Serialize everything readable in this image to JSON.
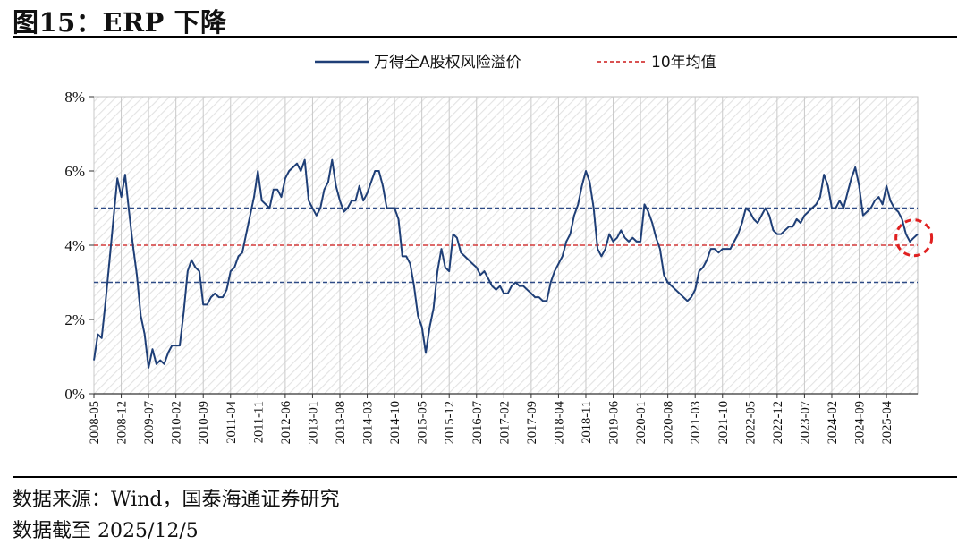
{
  "figure": {
    "title": "图15：ERP 下降",
    "source": "数据来源：Wind，国泰海通证券研究",
    "date_note": "数据截至 2025/12/5"
  },
  "colors": {
    "series": "#1f3f77",
    "mean": "#d43a3a",
    "bands": "#2e4b86",
    "highlight": "#e02020",
    "hatch": "#d8d8d8"
  },
  "chart_data": {
    "type": "line",
    "legend_position": "top",
    "hatched_background": true,
    "y_ticks": [
      "0%",
      "2%",
      "4%",
      "6%",
      "8%"
    ],
    "ylim": [
      0,
      8
    ],
    "x_ticks": [
      "2008-05",
      "2008-12",
      "2009-07",
      "2010-02",
      "2010-09",
      "2011-04",
      "2011-11",
      "2012-06",
      "2013-01",
      "2013-08",
      "2014-03",
      "2014-10",
      "2015-05",
      "2015-12",
      "2016-07",
      "2017-02",
      "2017-09",
      "2018-04",
      "2018-11",
      "2019-06",
      "2020-01",
      "2020-08",
      "2021-03",
      "2021-10",
      "2022-05",
      "2022-12",
      "2023-07",
      "2024-02",
      "2024-09",
      "2025-04"
    ],
    "x_range": [
      "2008-05",
      "2025-12"
    ],
    "series": [
      {
        "name": "万得全A股权风险溢价",
        "points": [
          [
            "2008-05",
            0.9
          ],
          [
            "2008-06",
            1.6
          ],
          [
            "2008-07",
            1.5
          ],
          [
            "2008-08",
            2.5
          ],
          [
            "2008-09",
            3.6
          ],
          [
            "2008-10",
            4.7
          ],
          [
            "2008-11",
            5.8
          ],
          [
            "2008-12",
            5.3
          ],
          [
            "2009-01",
            5.9
          ],
          [
            "2009-02",
            4.9
          ],
          [
            "2009-03",
            4.0
          ],
          [
            "2009-04",
            3.2
          ],
          [
            "2009-05",
            2.1
          ],
          [
            "2009-06",
            1.6
          ],
          [
            "2009-07",
            0.7
          ],
          [
            "2009-08",
            1.2
          ],
          [
            "2009-09",
            0.8
          ],
          [
            "2009-10",
            0.9
          ],
          [
            "2009-11",
            0.8
          ],
          [
            "2009-12",
            1.1
          ],
          [
            "2010-01",
            1.3
          ],
          [
            "2010-02",
            1.3
          ],
          [
            "2010-03",
            1.3
          ],
          [
            "2010-04",
            2.2
          ],
          [
            "2010-05",
            3.3
          ],
          [
            "2010-06",
            3.6
          ],
          [
            "2010-07",
            3.4
          ],
          [
            "2010-08",
            3.3
          ],
          [
            "2010-09",
            2.4
          ],
          [
            "2010-10",
            2.4
          ],
          [
            "2010-11",
            2.6
          ],
          [
            "2010-12",
            2.7
          ],
          [
            "2011-01",
            2.6
          ],
          [
            "2011-02",
            2.6
          ],
          [
            "2011-03",
            2.8
          ],
          [
            "2011-04",
            3.3
          ],
          [
            "2011-05",
            3.4
          ],
          [
            "2011-06",
            3.7
          ],
          [
            "2011-07",
            3.8
          ],
          [
            "2011-08",
            4.3
          ],
          [
            "2011-09",
            4.8
          ],
          [
            "2011-10",
            5.3
          ],
          [
            "2011-11",
            6.0
          ],
          [
            "2011-12",
            5.2
          ],
          [
            "2012-01",
            5.1
          ],
          [
            "2012-02",
            5.0
          ],
          [
            "2012-03",
            5.5
          ],
          [
            "2012-04",
            5.5
          ],
          [
            "2012-05",
            5.3
          ],
          [
            "2012-06",
            5.8
          ],
          [
            "2012-07",
            6.0
          ],
          [
            "2012-08",
            6.1
          ],
          [
            "2012-09",
            6.2
          ],
          [
            "2012-10",
            6.0
          ],
          [
            "2012-11",
            6.3
          ],
          [
            "2012-12",
            5.2
          ],
          [
            "2013-01",
            5.0
          ],
          [
            "2013-02",
            4.8
          ],
          [
            "2013-03",
            5.0
          ],
          [
            "2013-04",
            5.5
          ],
          [
            "2013-05",
            5.7
          ],
          [
            "2013-06",
            6.3
          ],
          [
            "2013-07",
            5.6
          ],
          [
            "2013-08",
            5.2
          ],
          [
            "2013-09",
            4.9
          ],
          [
            "2013-10",
            5.0
          ],
          [
            "2013-11",
            5.2
          ],
          [
            "2013-12",
            5.2
          ],
          [
            "2014-01",
            5.6
          ],
          [
            "2014-02",
            5.2
          ],
          [
            "2014-03",
            5.4
          ],
          [
            "2014-04",
            5.7
          ],
          [
            "2014-05",
            6.0
          ],
          [
            "2014-06",
            6.0
          ],
          [
            "2014-07",
            5.6
          ],
          [
            "2014-08",
            5.0
          ],
          [
            "2014-09",
            5.0
          ],
          [
            "2014-10",
            5.0
          ],
          [
            "2014-11",
            4.7
          ],
          [
            "2014-12",
            3.7
          ],
          [
            "2015-01",
            3.7
          ],
          [
            "2015-02",
            3.5
          ],
          [
            "2015-03",
            2.9
          ],
          [
            "2015-04",
            2.1
          ],
          [
            "2015-05",
            1.8
          ],
          [
            "2015-06",
            1.1
          ],
          [
            "2015-07",
            1.8
          ],
          [
            "2015-08",
            2.3
          ],
          [
            "2015-09",
            3.3
          ],
          [
            "2015-10",
            3.9
          ],
          [
            "2015-11",
            3.4
          ],
          [
            "2015-12",
            3.3
          ],
          [
            "2016-01",
            4.3
          ],
          [
            "2016-02",
            4.2
          ],
          [
            "2016-03",
            3.8
          ],
          [
            "2016-04",
            3.7
          ],
          [
            "2016-05",
            3.6
          ],
          [
            "2016-06",
            3.5
          ],
          [
            "2016-07",
            3.4
          ],
          [
            "2016-08",
            3.2
          ],
          [
            "2016-09",
            3.3
          ],
          [
            "2016-10",
            3.1
          ],
          [
            "2016-11",
            2.9
          ],
          [
            "2016-12",
            2.8
          ],
          [
            "2017-01",
            2.9
          ],
          [
            "2017-02",
            2.7
          ],
          [
            "2017-03",
            2.7
          ],
          [
            "2017-04",
            2.9
          ],
          [
            "2017-05",
            3.0
          ],
          [
            "2017-06",
            2.9
          ],
          [
            "2017-07",
            2.9
          ],
          [
            "2017-08",
            2.8
          ],
          [
            "2017-09",
            2.7
          ],
          [
            "2017-10",
            2.6
          ],
          [
            "2017-11",
            2.6
          ],
          [
            "2017-12",
            2.5
          ],
          [
            "2018-01",
            2.5
          ],
          [
            "2018-02",
            3.0
          ],
          [
            "2018-03",
            3.3
          ],
          [
            "2018-04",
            3.5
          ],
          [
            "2018-05",
            3.7
          ],
          [
            "2018-06",
            4.1
          ],
          [
            "2018-07",
            4.3
          ],
          [
            "2018-08",
            4.8
          ],
          [
            "2018-09",
            5.1
          ],
          [
            "2018-10",
            5.6
          ],
          [
            "2018-11",
            6.0
          ],
          [
            "2018-12",
            5.7
          ],
          [
            "2019-01",
            5.0
          ],
          [
            "2019-02",
            3.9
          ],
          [
            "2019-03",
            3.7
          ],
          [
            "2019-04",
            3.9
          ],
          [
            "2019-05",
            4.3
          ],
          [
            "2019-06",
            4.1
          ],
          [
            "2019-07",
            4.2
          ],
          [
            "2019-08",
            4.4
          ],
          [
            "2019-09",
            4.2
          ],
          [
            "2019-10",
            4.1
          ],
          [
            "2019-11",
            4.2
          ],
          [
            "2019-12",
            4.1
          ],
          [
            "2020-01",
            4.1
          ],
          [
            "2020-02",
            5.1
          ],
          [
            "2020-03",
            4.9
          ],
          [
            "2020-04",
            4.6
          ],
          [
            "2020-05",
            4.2
          ],
          [
            "2020-06",
            3.9
          ],
          [
            "2020-07",
            3.2
          ],
          [
            "2020-08",
            3.0
          ],
          [
            "2020-09",
            2.9
          ],
          [
            "2020-10",
            2.8
          ],
          [
            "2020-11",
            2.7
          ],
          [
            "2020-12",
            2.6
          ],
          [
            "2021-01",
            2.5
          ],
          [
            "2021-02",
            2.6
          ],
          [
            "2021-03",
            2.8
          ],
          [
            "2021-04",
            3.3
          ],
          [
            "2021-05",
            3.4
          ],
          [
            "2021-06",
            3.6
          ],
          [
            "2021-07",
            3.9
          ],
          [
            "2021-08",
            3.9
          ],
          [
            "2021-09",
            3.8
          ],
          [
            "2021-10",
            3.9
          ],
          [
            "2021-11",
            3.9
          ],
          [
            "2021-12",
            3.9
          ],
          [
            "2022-01",
            4.1
          ],
          [
            "2022-02",
            4.3
          ],
          [
            "2022-03",
            4.6
          ],
          [
            "2022-04",
            5.0
          ],
          [
            "2022-05",
            4.9
          ],
          [
            "2022-06",
            4.7
          ],
          [
            "2022-07",
            4.6
          ],
          [
            "2022-08",
            4.8
          ],
          [
            "2022-09",
            5.0
          ],
          [
            "2022-10",
            4.8
          ],
          [
            "2022-11",
            4.4
          ],
          [
            "2022-12",
            4.3
          ],
          [
            "2023-01",
            4.3
          ],
          [
            "2023-02",
            4.4
          ],
          [
            "2023-03",
            4.5
          ],
          [
            "2023-04",
            4.5
          ],
          [
            "2023-05",
            4.7
          ],
          [
            "2023-06",
            4.6
          ],
          [
            "2023-07",
            4.8
          ],
          [
            "2023-08",
            4.9
          ],
          [
            "2023-09",
            5.0
          ],
          [
            "2023-10",
            5.1
          ],
          [
            "2023-11",
            5.3
          ],
          [
            "2023-12",
            5.9
          ],
          [
            "2024-01",
            5.6
          ],
          [
            "2024-02",
            5.0
          ],
          [
            "2024-03",
            5.0
          ],
          [
            "2024-04",
            5.2
          ],
          [
            "2024-05",
            5.0
          ],
          [
            "2024-06",
            5.4
          ],
          [
            "2024-07",
            5.8
          ],
          [
            "2024-08",
            6.1
          ],
          [
            "2024-09",
            5.6
          ],
          [
            "2024-10",
            4.8
          ],
          [
            "2024-11",
            4.9
          ],
          [
            "2024-12",
            5.0
          ],
          [
            "2025-01",
            5.2
          ],
          [
            "2025-02",
            5.3
          ],
          [
            "2025-03",
            5.1
          ],
          [
            "2025-04",
            5.6
          ],
          [
            "2025-05",
            5.2
          ],
          [
            "2025-06",
            5.0
          ],
          [
            "2025-07",
            4.9
          ],
          [
            "2025-08",
            4.7
          ],
          [
            "2025-09",
            4.3
          ],
          [
            "2025-10",
            4.1
          ],
          [
            "2025-11",
            4.2
          ],
          [
            "2025-12",
            4.3
          ]
        ]
      },
      {
        "name": "10年均值",
        "value": 4.0
      }
    ],
    "bands": [
      3.0,
      5.0
    ],
    "highlight_circle_at": [
      "2025-11",
      4.2
    ]
  }
}
